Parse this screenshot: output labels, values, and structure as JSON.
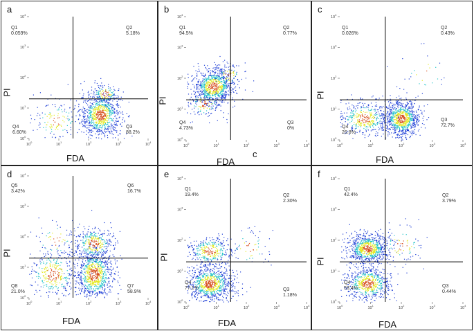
{
  "figure": {
    "stray_label": "c",
    "colors": {
      "border": "#222222",
      "gate_line": "#000000",
      "density_low": "#1f3fd6",
      "density_mid": "#24c4c8",
      "density_high": "#e3e81c",
      "density_peak": "#d64d1c"
    }
  },
  "chart_data": [
    {
      "type": "scatter",
      "panel": "a",
      "xlabel": "FDA",
      "ylabel": "PI",
      "xscale": "log",
      "yscale": "log",
      "xlim": [
        1,
        10000
      ],
      "ylim": [
        1,
        10000
      ],
      "x_ticks": [
        "10^0",
        "10^1",
        "10^2",
        "10^3",
        "10^4"
      ],
      "y_ticks": [
        "10^0",
        "10^1",
        "10^2",
        "10^3",
        "10^4"
      ],
      "gate": {
        "x": 30,
        "y": 20
      },
      "quadrants": [
        {
          "name": "Q1",
          "value": "0.059%",
          "pos": "top-left"
        },
        {
          "name": "Q2",
          "value": "5.18%",
          "pos": "top-right"
        },
        {
          "name": "Q4",
          "value": "6.60%",
          "pos": "bottom-left"
        },
        {
          "name": "Q3",
          "value": "88.2%",
          "pos": "bottom-right"
        }
      ],
      "clusters": [
        {
          "cx": 250,
          "cy": 6,
          "sx": 0.35,
          "sy": 0.38,
          "n": 900
        },
        {
          "cx": 8,
          "cy": 4,
          "sx": 0.45,
          "sy": 0.35,
          "n": 140
        },
        {
          "cx": 350,
          "cy": 30,
          "sx": 0.25,
          "sy": 0.18,
          "n": 120
        }
      ]
    },
    {
      "type": "scatter",
      "panel": "b",
      "xlabel": "FDA",
      "ylabel": "PI",
      "xscale": "log",
      "yscale": "log",
      "xlim": [
        1,
        10000
      ],
      "ylim": [
        1,
        10000
      ],
      "x_ticks": [
        "10^0",
        "10^1",
        "10^2",
        "10^3",
        "10^4"
      ],
      "y_ticks": [
        "10^0",
        "10^1",
        "10^2",
        "10^3",
        "10^4"
      ],
      "gate": {
        "x": 30,
        "y": 20
      },
      "quadrants": [
        {
          "name": "Q1",
          "value": "94.5%",
          "pos": "top-left"
        },
        {
          "name": "Q2",
          "value": "0.77%",
          "pos": "top-right"
        },
        {
          "name": "Q4",
          "value": "4.73%",
          "pos": "bottom-left"
        },
        {
          "name": "Q3",
          "value": "0%",
          "pos": "bottom-right"
        }
      ],
      "clusters": [
        {
          "cx": 8,
          "cy": 55,
          "sx": 0.35,
          "sy": 0.3,
          "n": 900
        },
        {
          "cx": 4,
          "cy": 15,
          "sx": 0.3,
          "sy": 0.25,
          "n": 120
        },
        {
          "cx": 25,
          "cy": 130,
          "sx": 0.25,
          "sy": 0.2,
          "n": 80
        }
      ]
    },
    {
      "type": "scatter",
      "panel": "c",
      "xlabel": "FDA",
      "ylabel": "PI",
      "xscale": "log",
      "yscale": "log",
      "xlim": [
        1,
        10000
      ],
      "ylim": [
        1,
        10000
      ],
      "x_ticks": [
        "10^0",
        "10^1",
        "10^2",
        "10^3",
        "10^4"
      ],
      "y_ticks": [
        "10^0",
        "10^1",
        "10^2",
        "10^3",
        "10^4"
      ],
      "gate": {
        "x": 30,
        "y": 20
      },
      "quadrants": [
        {
          "name": "Q1",
          "value": "0.026%",
          "pos": "top-left"
        },
        {
          "name": "Q2",
          "value": "0.43%",
          "pos": "top-right"
        },
        {
          "name": "Q4",
          "value": "26.8%",
          "pos": "bottom-left"
        },
        {
          "name": "Q3",
          "value": "72.7%",
          "pos": "bottom-right"
        }
      ],
      "clusters": [
        {
          "cx": 100,
          "cy": 5,
          "sx": 0.3,
          "sy": 0.3,
          "n": 900
        },
        {
          "cx": 6,
          "cy": 5,
          "sx": 0.45,
          "sy": 0.3,
          "n": 420
        },
        {
          "cx": 600,
          "cy": 150,
          "sx": 0.4,
          "sy": 0.4,
          "n": 25
        }
      ]
    },
    {
      "type": "scatter",
      "panel": "d",
      "xlabel": "FDA",
      "ylabel": "PI",
      "xscale": "log",
      "yscale": "log",
      "xlim": [
        1,
        10000
      ],
      "ylim": [
        1,
        10000
      ],
      "x_ticks": [
        "10^0",
        "10^1",
        "10^2",
        "10^3",
        "10^4"
      ],
      "y_ticks": [
        "10^0",
        "10^1",
        "10^2",
        "10^3",
        "10^4"
      ],
      "gate": {
        "x": 30,
        "y": 20
      },
      "quadrants": [
        {
          "name": "Q5",
          "value": "3.42%",
          "pos": "top-left"
        },
        {
          "name": "Q6",
          "value": "16.7%",
          "pos": "top-right"
        },
        {
          "name": "Q8",
          "value": "21.0%",
          "pos": "bottom-left"
        },
        {
          "name": "Q7",
          "value": "58.9%",
          "pos": "bottom-right"
        }
      ],
      "clusters": [
        {
          "cx": 150,
          "cy": 6,
          "sx": 0.35,
          "sy": 0.45,
          "n": 900
        },
        {
          "cx": 150,
          "cy": 60,
          "sx": 0.35,
          "sy": 0.3,
          "n": 350
        },
        {
          "cx": 6,
          "cy": 6,
          "sx": 0.45,
          "sy": 0.45,
          "n": 380
        },
        {
          "cx": 8,
          "cy": 80,
          "sx": 0.4,
          "sy": 0.35,
          "n": 60
        }
      ]
    },
    {
      "type": "scatter",
      "panel": "e",
      "xlabel": "FDA",
      "ylabel": "PI",
      "xscale": "log",
      "yscale": "log",
      "xlim": [
        1,
        10000
      ],
      "ylim": [
        1,
        10000
      ],
      "x_ticks": [
        "10^0",
        "10^1",
        "10^2",
        "10^3",
        "10^4"
      ],
      "y_ticks": [
        "10^0",
        "10^1",
        "10^2",
        "10^3",
        "10^4"
      ],
      "gate": {
        "x": 30,
        "y": 20
      },
      "quadrants": [
        {
          "name": "Q1",
          "value": "19.4%",
          "pos": "top-left"
        },
        {
          "name": "Q2",
          "value": "2.30%",
          "pos": "top-right"
        },
        {
          "name": "Q4",
          "value": "77.1%",
          "pos": "bottom-left"
        },
        {
          "name": "Q3",
          "value": "1.18%",
          "pos": "bottom-right"
        }
      ],
      "clusters": [
        {
          "cx": 6,
          "cy": 4,
          "sx": 0.4,
          "sy": 0.3,
          "n": 900
        },
        {
          "cx": 6,
          "cy": 45,
          "sx": 0.4,
          "sy": 0.25,
          "n": 350
        },
        {
          "cx": 120,
          "cy": 60,
          "sx": 0.35,
          "sy": 0.35,
          "n": 60
        }
      ]
    },
    {
      "type": "scatter",
      "panel": "f",
      "xlabel": "FDA",
      "ylabel": "PI",
      "xscale": "log",
      "yscale": "log",
      "xlim": [
        1,
        10000
      ],
      "ylim": [
        1,
        10000
      ],
      "x_ticks": [
        "10^0",
        "10^1",
        "10^2",
        "10^3",
        "10^4"
      ],
      "y_ticks": [
        "10^0",
        "10^1",
        "10^2",
        "10^3",
        "10^4"
      ],
      "gate": {
        "x": 30,
        "y": 20
      },
      "quadrants": [
        {
          "name": "Q1",
          "value": "42.4%",
          "pos": "top-left"
        },
        {
          "name": "Q2",
          "value": "3.79%",
          "pos": "top-right"
        },
        {
          "name": "Q4",
          "value": "53.4%",
          "pos": "bottom-left"
        },
        {
          "name": "Q3",
          "value": "0.44%",
          "pos": "bottom-right"
        }
      ],
      "clusters": [
        {
          "cx": 8,
          "cy": 55,
          "sx": 0.35,
          "sy": 0.25,
          "n": 800
        },
        {
          "cx": 8,
          "cy": 4,
          "sx": 0.4,
          "sy": 0.3,
          "n": 650
        },
        {
          "cx": 100,
          "cy": 70,
          "sx": 0.4,
          "sy": 0.35,
          "n": 80
        }
      ]
    }
  ]
}
